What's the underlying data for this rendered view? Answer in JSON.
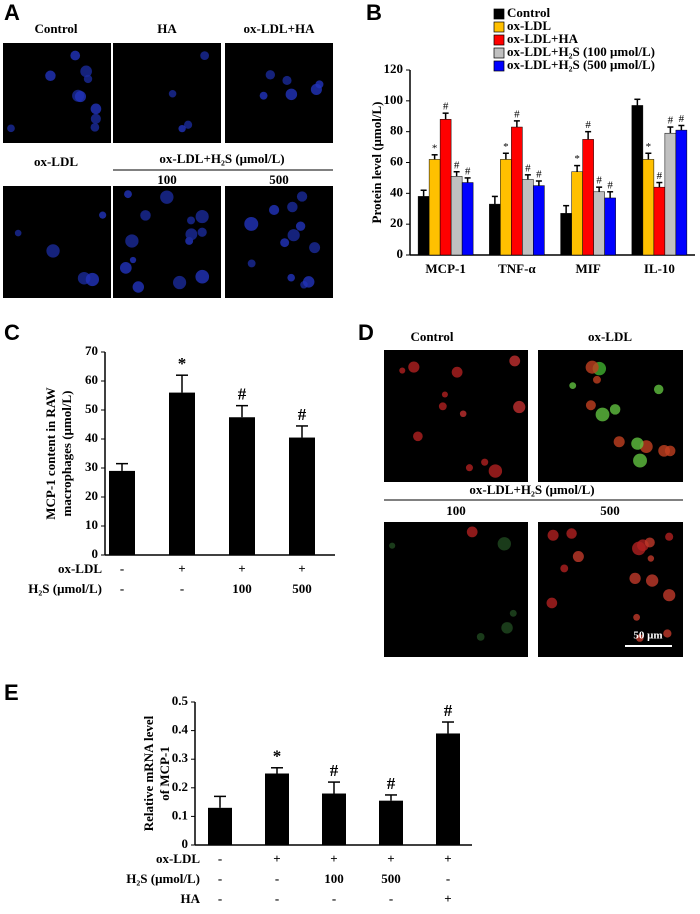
{
  "panel_labels": [
    "A",
    "B",
    "C",
    "D",
    "E"
  ],
  "panel_a": {
    "top_labels": [
      "Control",
      "HA",
      "ox-LDL+HA"
    ],
    "bottom_label": "ox-LDL",
    "group_label": "ox-LDL+H₂S (μmol/L)",
    "doses": [
      "100",
      "500"
    ]
  },
  "panel_d": {
    "top_labels": [
      "Control",
      "ox-LDL"
    ],
    "group_label": "ox-LDL+H₂S (μmol/L)",
    "doses": [
      "100",
      "500"
    ],
    "scale_bar": "50 μm"
  },
  "chart_data": [
    {
      "type": "grouped-bar",
      "ylabel": "Protein level (μmol/L)",
      "categories": [
        "MCP-1",
        "TNF-α",
        "MIF",
        "IL-10"
      ],
      "series": [
        {
          "name": "Control",
          "color": "#000000",
          "values": [
            38,
            33,
            27,
            97
          ],
          "errors": [
            4,
            5,
            5,
            4
          ],
          "annotations": [
            null,
            null,
            null,
            null
          ]
        },
        {
          "name": "ox-LDL",
          "color": "#ffc000",
          "values": [
            62,
            62,
            54,
            62
          ],
          "errors": [
            3,
            4,
            4,
            4
          ],
          "annotations": [
            "*",
            "*",
            "*",
            "*"
          ]
        },
        {
          "name": "ox-LDL+HA",
          "color": "#ff0000",
          "values": [
            88,
            83,
            75,
            44
          ],
          "errors": [
            4,
            4,
            5,
            3
          ],
          "annotations": [
            "#",
            "#",
            "#",
            "#"
          ]
        },
        {
          "name": "ox-LDL+H₂S (100 μmol/L)",
          "color": "#c0c0c0",
          "values": [
            51,
            49,
            41,
            79
          ],
          "errors": [
            3,
            3,
            3,
            4
          ],
          "annotations": [
            "#",
            "#",
            "#",
            "#"
          ]
        },
        {
          "name": "ox-LDL+H₂S (500 μmol/L)",
          "color": "#0000ff",
          "values": [
            47,
            45,
            37,
            81
          ],
          "errors": [
            3,
            3,
            4,
            3
          ],
          "annotations": [
            "#",
            "#",
            "#",
            "#"
          ]
        }
      ],
      "ylim": [
        0,
        120
      ],
      "yticks": [
        0,
        20,
        40,
        60,
        80,
        100,
        120
      ]
    },
    {
      "type": "bar",
      "ylabel": [
        "MCP-1 content in RAW",
        "macrophages (μmol/L)"
      ],
      "color": "#000000",
      "values": [
        29,
        56,
        47.5,
        40.5
      ],
      "errors": [
        2.5,
        6,
        4,
        4
      ],
      "annotations": [
        null,
        "*",
        "#",
        "#"
      ],
      "conditions": [
        {
          "label": "ox-LDL",
          "values": [
            "-",
            "+",
            "+",
            "+"
          ]
        },
        {
          "label": "H₂S (μmol/L)",
          "values": [
            "-",
            "-",
            "100",
            "500"
          ]
        }
      ],
      "ylim": [
        0,
        70
      ],
      "yticks": [
        0,
        10,
        20,
        30,
        40,
        50,
        60,
        70
      ]
    },
    {
      "type": "bar",
      "ylabel": [
        "Relative mRNA level",
        "of MCP-1"
      ],
      "color": "#000000",
      "values": [
        0.13,
        0.25,
        0.18,
        0.155,
        0.39
      ],
      "errors": [
        0.04,
        0.02,
        0.04,
        0.02,
        0.04
      ],
      "annotations": [
        null,
        "*",
        "#",
        "#",
        "#"
      ],
      "conditions": [
        {
          "label": "ox-LDL",
          "values": [
            "-",
            "+",
            "+",
            "+",
            "+"
          ]
        },
        {
          "label": "H₂S (μmol/L)",
          "values": [
            "-",
            "-",
            "100",
            "500",
            "-"
          ]
        },
        {
          "label": "HA",
          "values": [
            "-",
            "-",
            "-",
            "-",
            "+"
          ]
        }
      ],
      "ylim": [
        0,
        0.5
      ],
      "yticks": [
        0,
        0.1,
        0.2,
        0.3,
        0.4,
        0.5
      ]
    }
  ]
}
